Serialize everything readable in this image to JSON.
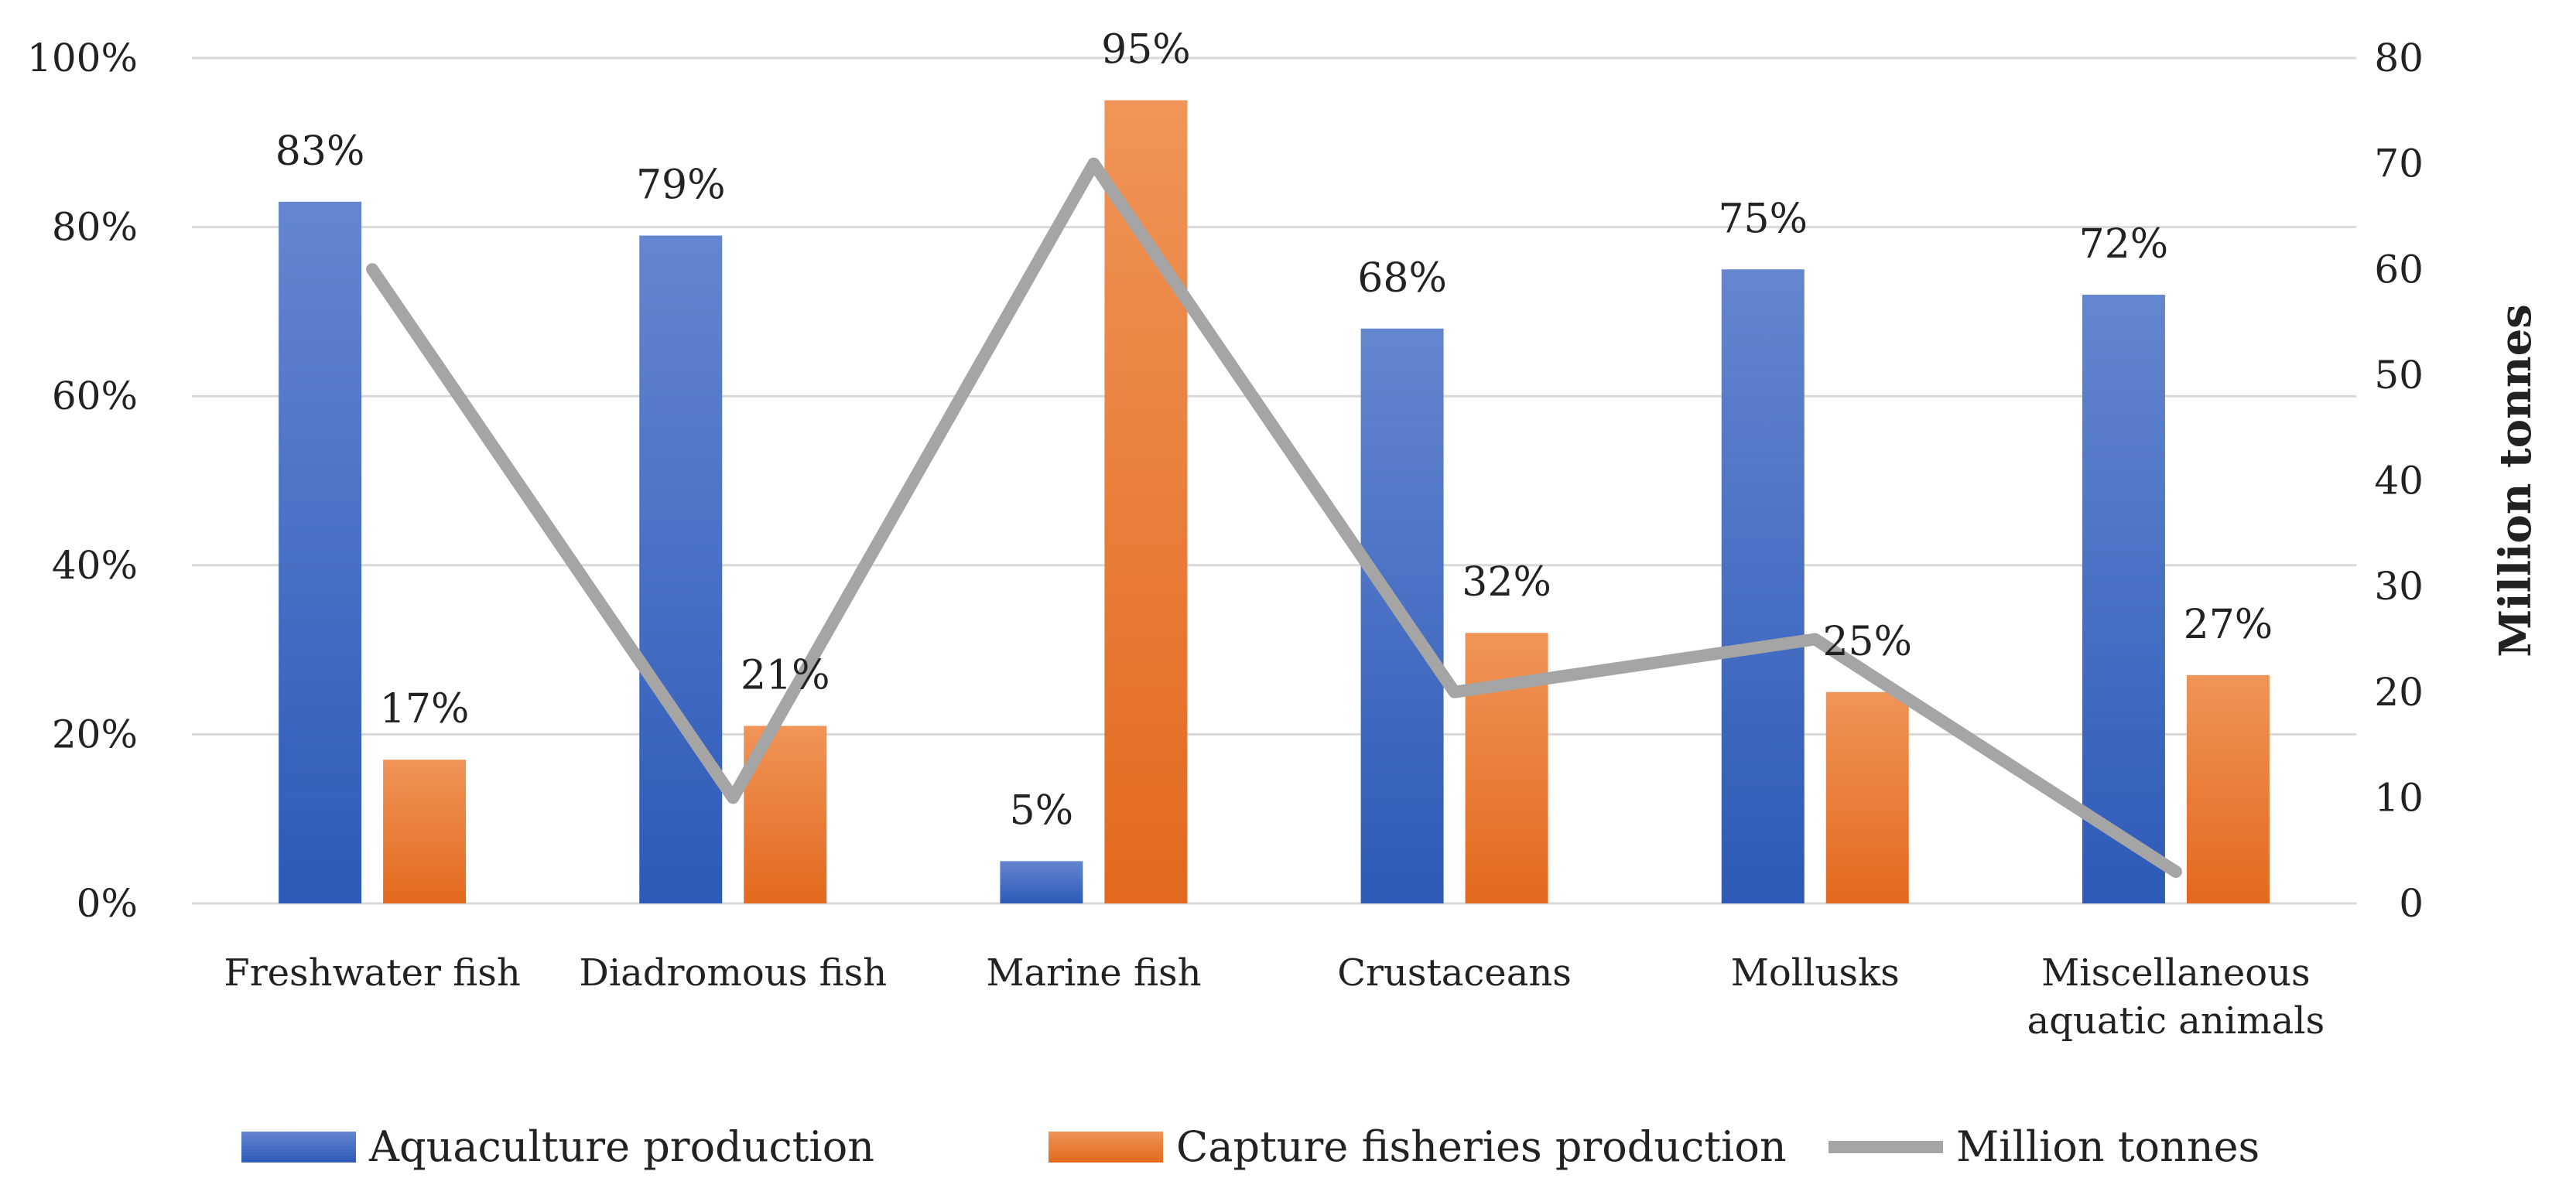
{
  "chart_data": {
    "type": "bar",
    "categories": [
      [
        "Freshwater fish"
      ],
      [
        "Diadromous fish"
      ],
      [
        "Marine fish"
      ],
      [
        "Crustaceans"
      ],
      [
        "Mollusks"
      ],
      [
        "Miscellaneous",
        "aquatic animals"
      ]
    ],
    "series": [
      {
        "name": "Aquaculture production",
        "kind": "bar",
        "axis": "left",
        "values": [
          83,
          79,
          5,
          68,
          75,
          72
        ],
        "labels": [
          "83%",
          "79%",
          "5%",
          "68%",
          "75%",
          "72%"
        ],
        "color_top": "#6486cf",
        "color_bottom": "#2d5ab8"
      },
      {
        "name": "Capture fisheries production",
        "kind": "bar",
        "axis": "left",
        "values": [
          17,
          21,
          95,
          32,
          25,
          27
        ],
        "labels": [
          "17%",
          "21%",
          "95%",
          "32%",
          "25%",
          "27%"
        ],
        "color_top": "#f09458",
        "color_bottom": "#e2691d"
      },
      {
        "name": "Million tonnes",
        "kind": "line",
        "axis": "right",
        "values": [
          60,
          10,
          70,
          20,
          25,
          3
        ],
        "color": "#a5a5a5"
      }
    ],
    "y_left": {
      "min": 0,
      "max": 100,
      "step": 20,
      "ticks": [
        "0%",
        "20%",
        "40%",
        "60%",
        "80%",
        "100%"
      ]
    },
    "y_right": {
      "min": 0,
      "max": 80,
      "step": 10,
      "label": "Million tonnes",
      "ticks": [
        "0",
        "10",
        "20",
        "30",
        "40",
        "50",
        "60",
        "70",
        "80"
      ]
    },
    "grid": true,
    "legend_position": "bottom"
  }
}
